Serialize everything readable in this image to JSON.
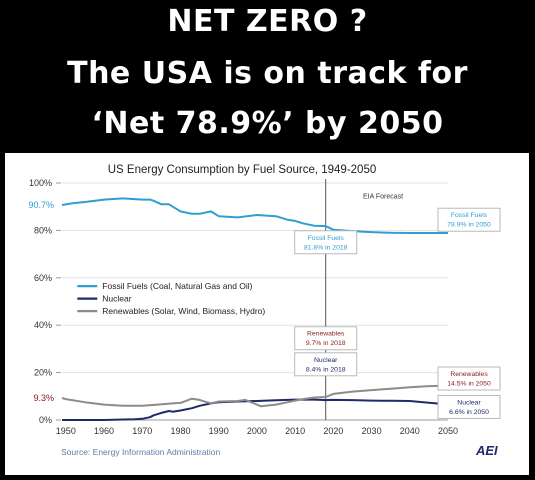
{
  "headline": {
    "line1": "NET ZERO ?",
    "line2": "The USA is on track for",
    "line3": "‘Net 78.9%’ by 2050"
  },
  "chart_data": {
    "type": "line",
    "title": "US Energy Consumption by Fuel Source, 1949-2050",
    "xlabel": "",
    "ylabel": "",
    "xlim": [
      1949,
      2050
    ],
    "ylim": [
      0,
      100
    ],
    "x_ticks": [
      "1950",
      "1960",
      "1970",
      "1980",
      "1990",
      "2000",
      "2010",
      "2020",
      "2030",
      "2040",
      "2050"
    ],
    "y_ticks": [
      "0%",
      "20%",
      "40%",
      "60%",
      "80%",
      "100%"
    ],
    "grid": "horizontal",
    "legend_position": "center-left",
    "forecast_label": "EIA Forecast",
    "forecast_start": 2018,
    "source": "Source: Energy Information Administration",
    "logo": "AEI",
    "left_labels": {
      "fossil": "90.7%",
      "renewables": "9.3%"
    },
    "series": [
      {
        "name": "Fossil Fuels (Coal, Natural Gas and Oil)",
        "color": "#2e9fd0",
        "points": [
          [
            1949,
            90.7
          ],
          [
            1952,
            91.5
          ],
          [
            1955,
            92
          ],
          [
            1960,
            93
          ],
          [
            1965,
            93.5
          ],
          [
            1970,
            93
          ],
          [
            1972,
            93
          ],
          [
            1973,
            92.5
          ],
          [
            1975,
            91
          ],
          [
            1977,
            91
          ],
          [
            1978,
            90
          ],
          [
            1980,
            88
          ],
          [
            1983,
            87
          ],
          [
            1985,
            87
          ],
          [
            1988,
            88
          ],
          [
            1990,
            86
          ],
          [
            1995,
            85.5
          ],
          [
            2000,
            86.5
          ],
          [
            2005,
            86
          ],
          [
            2008,
            84.5
          ],
          [
            2010,
            84
          ],
          [
            2012,
            83
          ],
          [
            2015,
            82
          ],
          [
            2018,
            81.8
          ],
          [
            2020,
            80.3
          ],
          [
            2025,
            79.7
          ],
          [
            2030,
            79.3
          ],
          [
            2035,
            79
          ],
          [
            2040,
            78.9
          ],
          [
            2045,
            78.9
          ],
          [
            2050,
            78.9
          ]
        ]
      },
      {
        "name": "Nuclear",
        "color": "#1f2a6b",
        "points": [
          [
            1949,
            0
          ],
          [
            1957,
            0
          ],
          [
            1960,
            0
          ],
          [
            1965,
            0.2
          ],
          [
            1968,
            0.3
          ],
          [
            1970,
            0.5
          ],
          [
            1972,
            1.2
          ],
          [
            1973,
            2
          ],
          [
            1975,
            3
          ],
          [
            1977,
            3.8
          ],
          [
            1978,
            3.5
          ],
          [
            1980,
            4
          ],
          [
            1983,
            5
          ],
          [
            1985,
            6
          ],
          [
            1988,
            7
          ],
          [
            1990,
            7.5
          ],
          [
            1995,
            7.8
          ],
          [
            2000,
            8
          ],
          [
            2005,
            8.3
          ],
          [
            2010,
            8.6
          ],
          [
            2015,
            8.6
          ],
          [
            2018,
            8.4
          ],
          [
            2020,
            8.5
          ],
          [
            2025,
            8.4
          ],
          [
            2030,
            8.2
          ],
          [
            2035,
            8.1
          ],
          [
            2040,
            8
          ],
          [
            2045,
            7.3
          ],
          [
            2050,
            6.6
          ]
        ]
      },
      {
        "name": "Renewables (Solar, Wind, Biomass, Hydro)",
        "color": "#8c8c8c",
        "points": [
          [
            1949,
            9.3
          ],
          [
            1950,
            8.8
          ],
          [
            1955,
            7.5
          ],
          [
            1960,
            6.5
          ],
          [
            1965,
            6
          ],
          [
            1970,
            6
          ],
          [
            1974,
            6.5
          ],
          [
            1978,
            7
          ],
          [
            1980,
            7.2
          ],
          [
            1983,
            9
          ],
          [
            1985,
            8.5
          ],
          [
            1988,
            7
          ],
          [
            1990,
            7.8
          ],
          [
            1995,
            8
          ],
          [
            1997,
            8.5
          ],
          [
            2000,
            6.5
          ],
          [
            2001,
            5.8
          ],
          [
            2005,
            6.5
          ],
          [
            2008,
            7.5
          ],
          [
            2010,
            8.2
          ],
          [
            2012,
            8.8
          ],
          [
            2015,
            9.5
          ],
          [
            2018,
            9.7
          ],
          [
            2020,
            11
          ],
          [
            2025,
            12
          ],
          [
            2030,
            12.6
          ],
          [
            2035,
            13.2
          ],
          [
            2040,
            13.8
          ],
          [
            2045,
            14.3
          ],
          [
            2050,
            14.5
          ]
        ]
      }
    ],
    "callouts": [
      {
        "lines": [
          "Fossil Fuels",
          "81.8% in 2018"
        ],
        "color": "#2e9fd0"
      },
      {
        "lines": [
          "Renewables",
          "9.7% in 2018"
        ],
        "color": "#8b1a1a"
      },
      {
        "lines": [
          "Nuclear",
          "8.4% in 2018"
        ],
        "color": "#1f2a6b"
      },
      {
        "lines": [
          "Fossil Fuels",
          "78.9% in 2050"
        ],
        "color": "#2e9fd0"
      },
      {
        "lines": [
          "Renewables",
          "14.5% in 2050"
        ],
        "color": "#8b1a1a"
      },
      {
        "lines": [
          "Nuclear",
          "6.6% in 2050"
        ],
        "color": "#1f2a6b"
      }
    ]
  }
}
